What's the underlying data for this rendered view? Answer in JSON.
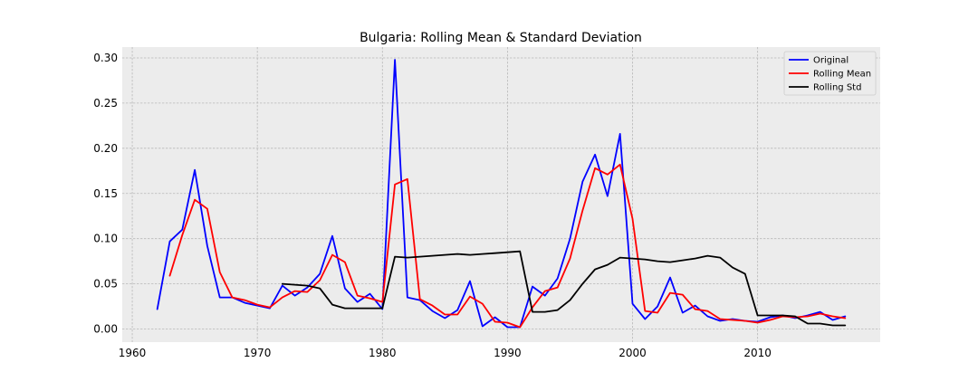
{
  "chart_data": {
    "type": "line",
    "title": "Bulgaria: Rolling Mean & Standard Deviation",
    "xlabel": "",
    "ylabel": "",
    "xlim": [
      1959.2,
      2019.8
    ],
    "ylim": [
      -0.0145,
      0.312
    ],
    "xticks": [
      1960,
      1970,
      1980,
      1990,
      2000,
      2010
    ],
    "yticks": [
      "0.00",
      "0.05",
      "0.10",
      "0.15",
      "0.20",
      "0.25",
      "0.30"
    ],
    "ytick_values": [
      0.0,
      0.05,
      0.1,
      0.15,
      0.2,
      0.25,
      0.3
    ],
    "grid": true,
    "legend_position": "top-right",
    "colors": {
      "plot_background": "#ececec",
      "grid": "#b8b8b8"
    },
    "series": [
      {
        "name": "Original",
        "color": "#0000ff",
        "x": [
          1962,
          1963,
          1964,
          1965,
          1966,
          1967,
          1968,
          1969,
          1970,
          1971,
          1972,
          1973,
          1974,
          1975,
          1976,
          1977,
          1978,
          1979,
          1980,
          1981,
          1982,
          1983,
          1984,
          1985,
          1986,
          1987,
          1988,
          1989,
          1990,
          1991,
          1992,
          1993,
          1994,
          1995,
          1996,
          1997,
          1998,
          1999,
          2000,
          2001,
          2002,
          2003,
          2004,
          2005,
          2006,
          2007,
          2008,
          2009,
          2010,
          2011,
          2012,
          2013,
          2014,
          2015,
          2016,
          2017
        ],
        "values": [
          0.022,
          0.097,
          0.11,
          0.176,
          0.092,
          0.035,
          0.035,
          0.029,
          0.026,
          0.023,
          0.048,
          0.037,
          0.046,
          0.061,
          0.103,
          0.045,
          0.03,
          0.039,
          0.022,
          0.298,
          0.035,
          0.032,
          0.02,
          0.012,
          0.021,
          0.053,
          0.003,
          0.013,
          0.002,
          0.002,
          0.047,
          0.037,
          0.056,
          0.1,
          0.163,
          0.193,
          0.147,
          0.216,
          0.028,
          0.011,
          0.025,
          0.057,
          0.018,
          0.026,
          0.014,
          0.009,
          0.011,
          0.009,
          0.008,
          0.013,
          0.015,
          0.012,
          0.015,
          0.019,
          0.01,
          0.014
        ]
      },
      {
        "name": "Rolling Mean",
        "color": "#ff0000",
        "x": [
          1963,
          1964,
          1965,
          1966,
          1967,
          1968,
          1969,
          1970,
          1971,
          1972,
          1973,
          1974,
          1975,
          1976,
          1977,
          1978,
          1979,
          1980,
          1981,
          1982,
          1983,
          1984,
          1985,
          1986,
          1987,
          1988,
          1989,
          1990,
          1991,
          1992,
          1993,
          1994,
          1995,
          1996,
          1997,
          1998,
          1999,
          2000,
          2001,
          2002,
          2003,
          2004,
          2005,
          2006,
          2007,
          2008,
          2009,
          2010,
          2011,
          2012,
          2013,
          2014,
          2015,
          2016,
          2017
        ],
        "values": [
          0.059,
          0.104,
          0.143,
          0.133,
          0.063,
          0.035,
          0.032,
          0.027,
          0.024,
          0.035,
          0.042,
          0.041,
          0.054,
          0.082,
          0.074,
          0.037,
          0.034,
          0.03,
          0.16,
          0.166,
          0.033,
          0.026,
          0.016,
          0.016,
          0.036,
          0.028,
          0.008,
          0.007,
          0.002,
          0.024,
          0.042,
          0.046,
          0.078,
          0.131,
          0.178,
          0.171,
          0.182,
          0.122,
          0.02,
          0.018,
          0.04,
          0.038,
          0.022,
          0.02,
          0.011,
          0.01,
          0.009,
          0.007,
          0.01,
          0.014,
          0.013,
          0.014,
          0.017,
          0.014,
          0.012
        ]
      },
      {
        "name": "Rolling Std",
        "color": "#000000",
        "x": [
          1972,
          1973,
          1974,
          1975,
          1976,
          1977,
          1978,
          1979,
          1980,
          1981,
          1982,
          1983,
          1984,
          1985,
          1986,
          1987,
          1988,
          1989,
          1990,
          1991,
          1992,
          1993,
          1994,
          1995,
          1996,
          1997,
          1998,
          1999,
          2000,
          2001,
          2002,
          2003,
          2004,
          2005,
          2006,
          2007,
          2008,
          2009,
          2010,
          2011,
          2012,
          2013,
          2014,
          2015,
          2016,
          2017
        ],
        "values": [
          0.05,
          0.049,
          0.048,
          0.045,
          0.027,
          0.023,
          0.023,
          0.023,
          0.023,
          0.08,
          0.079,
          0.08,
          0.081,
          0.082,
          0.083,
          0.082,
          0.083,
          0.084,
          0.085,
          0.086,
          0.019,
          0.019,
          0.021,
          0.032,
          0.05,
          0.066,
          0.071,
          0.079,
          0.078,
          0.077,
          0.075,
          0.074,
          0.076,
          0.078,
          0.081,
          0.079,
          0.068,
          0.061,
          0.015,
          0.015,
          0.015,
          0.014,
          0.006,
          0.006,
          0.004,
          0.004
        ]
      }
    ]
  }
}
